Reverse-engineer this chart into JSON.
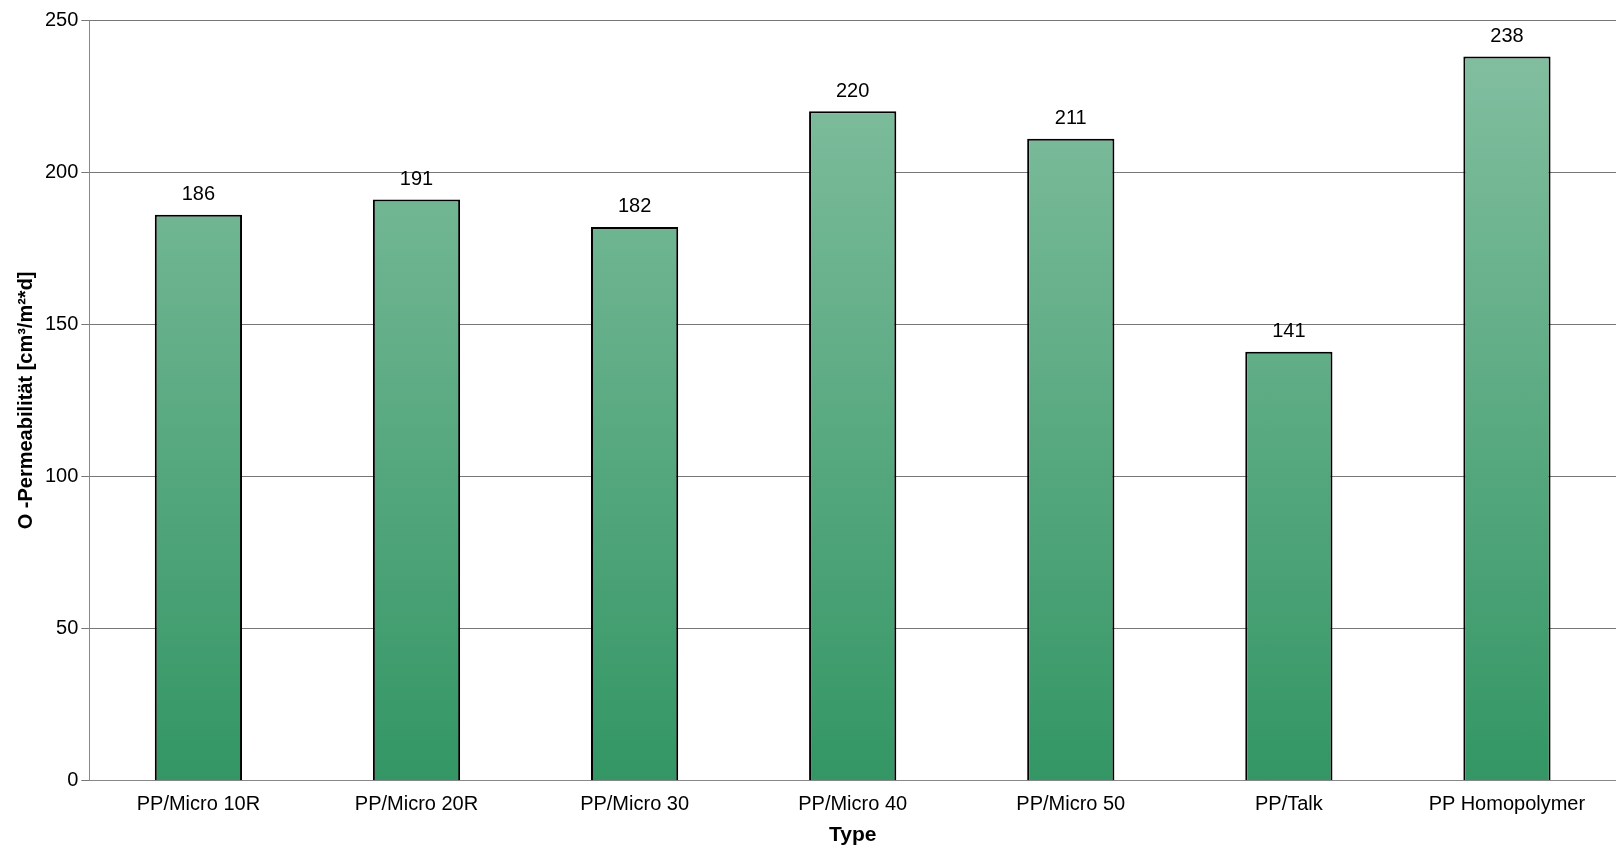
{
  "chart_data": {
    "type": "bar",
    "xlabel": "Type",
    "ylabel": "O -Permeabilität [cm³/m²*d]",
    "categories": [
      "PP/Micro 10R",
      "PP/Micro 20R",
      "PP/Micro 30",
      "PP/Micro 40",
      "PP/Micro 50",
      "PP/Talk",
      "PP Homopolymer"
    ],
    "values": [
      186,
      191,
      182,
      220,
      211,
      141,
      238
    ],
    "color": "#339664",
    "ylim": [
      0,
      250
    ],
    "yticks": [
      0,
      50,
      100,
      150,
      200,
      250
    ],
    "grid": "y",
    "legend": false,
    "data_labels": true
  }
}
